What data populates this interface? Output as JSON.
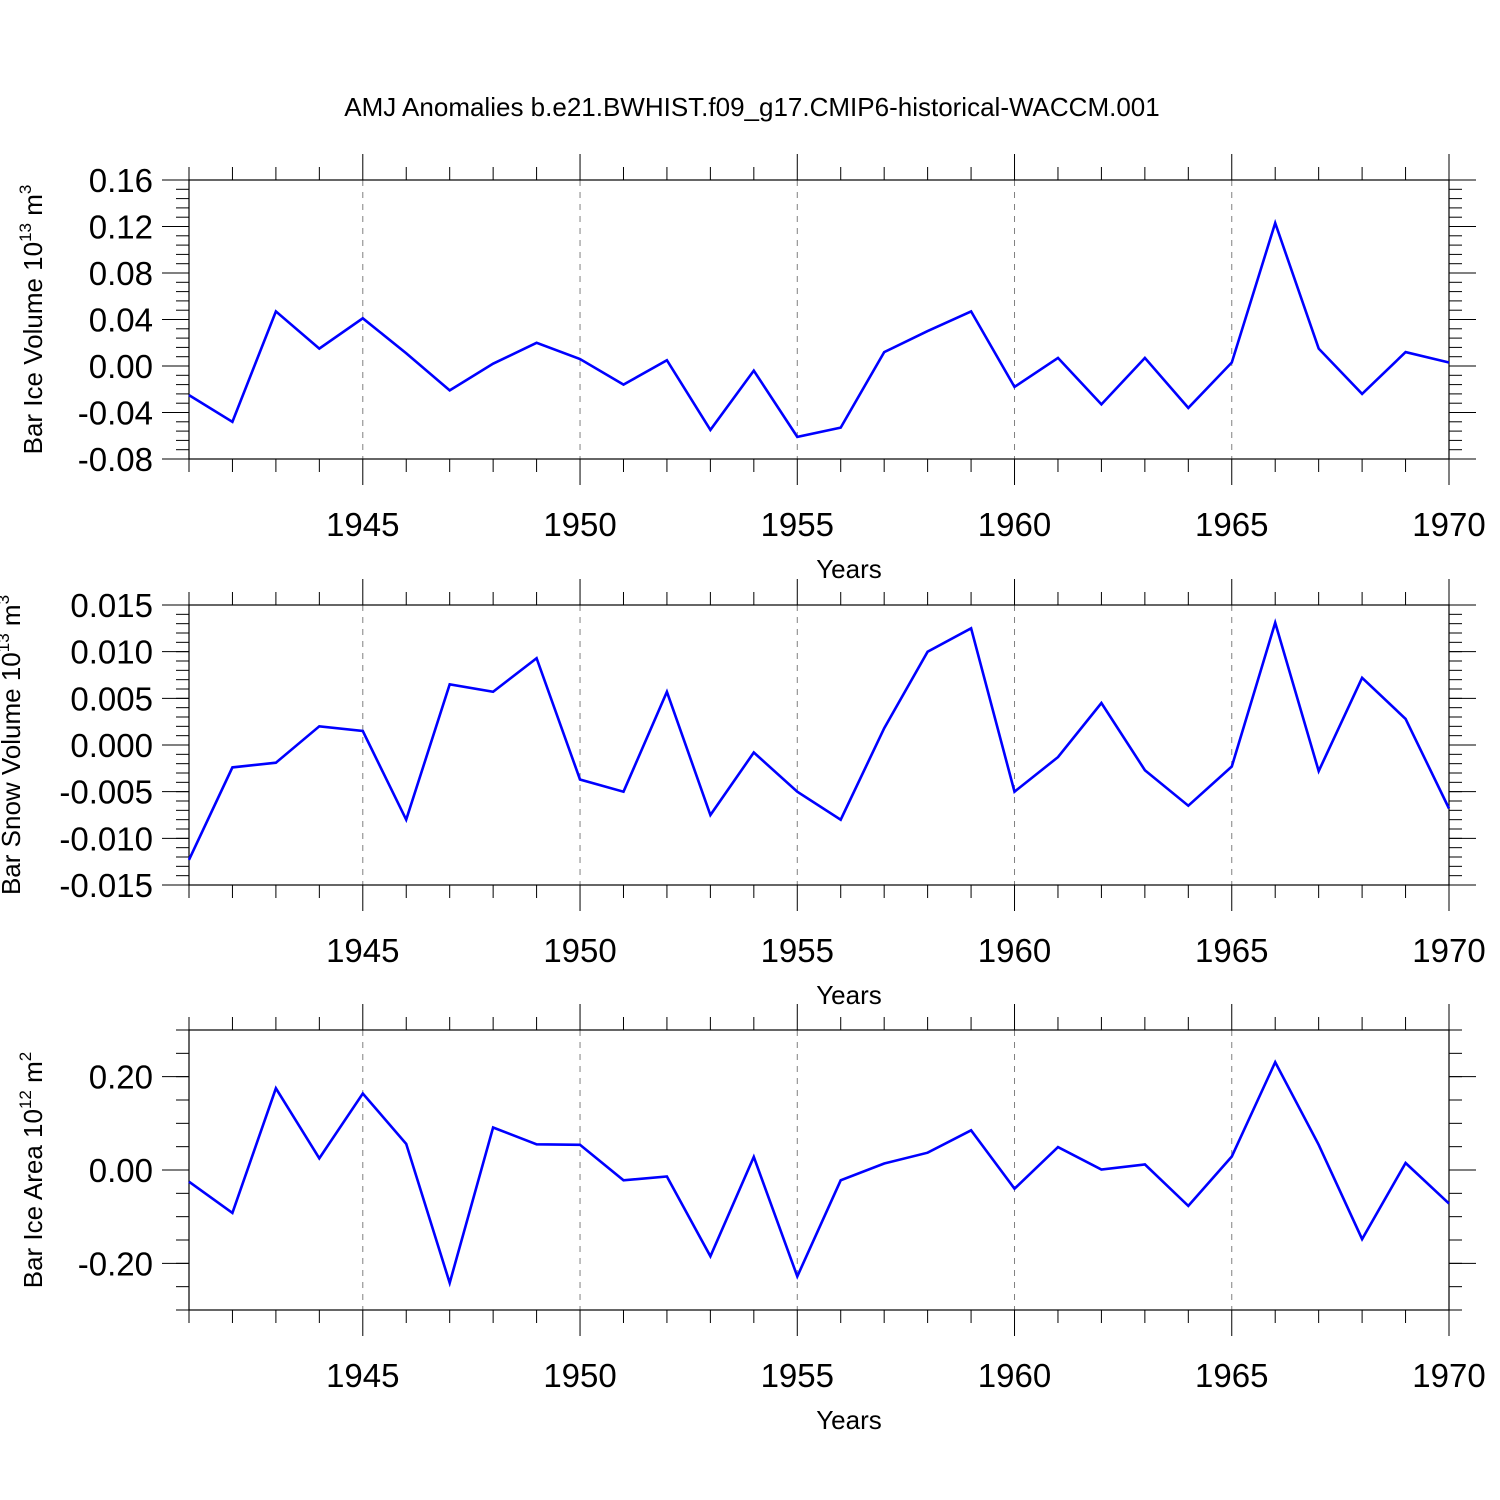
{
  "title": "AMJ Anomalies b.e21.BWHIST.f09_g17.CMIP6-historical-WACCM.001",
  "colors": {
    "line": "#0000ff",
    "axis": "#000000",
    "grid": "#808080"
  },
  "chart_data": [
    {
      "type": "line",
      "name": "ice-volume",
      "ylabel_parts": {
        "base": "Bar Ice Volume 10",
        "exp1": "13",
        "mid": " m",
        "exp2": "3"
      },
      "xlabel": "Years",
      "xlim": [
        1941,
        1970
      ],
      "ylim": [
        -0.08,
        0.16
      ],
      "yticks": [
        {
          "v": -0.08,
          "label": "-0.08"
        },
        {
          "v": -0.04,
          "label": "-0.04"
        },
        {
          "v": 0.0,
          "label": "0.00"
        },
        {
          "v": 0.04,
          "label": "0.04"
        },
        {
          "v": 0.08,
          "label": "0.08"
        },
        {
          "v": 0.12,
          "label": "0.12"
        },
        {
          "v": 0.16,
          "label": "0.16"
        }
      ],
      "yminor": 0.008,
      "xticks": [
        {
          "v": 1945,
          "label": "1945"
        },
        {
          "v": 1950,
          "label": "1950"
        },
        {
          "v": 1955,
          "label": "1955"
        },
        {
          "v": 1960,
          "label": "1960"
        },
        {
          "v": 1965,
          "label": "1965"
        },
        {
          "v": 1970,
          "label": "1970"
        }
      ],
      "x": [
        1941,
        1942,
        1943,
        1944,
        1945,
        1946,
        1947,
        1948,
        1949,
        1950,
        1951,
        1952,
        1953,
        1954,
        1955,
        1956,
        1957,
        1958,
        1959,
        1960,
        1961,
        1962,
        1963,
        1964,
        1965,
        1966,
        1967,
        1968,
        1969,
        1970
      ],
      "values": [
        -0.025,
        -0.048,
        0.047,
        0.015,
        0.041,
        0.011,
        -0.021,
        0.002,
        0.02,
        0.006,
        -0.016,
        0.005,
        -0.055,
        -0.004,
        -0.061,
        -0.053,
        0.012,
        0.03,
        0.047,
        -0.018,
        0.007,
        -0.033,
        0.007,
        -0.036,
        0.003,
        0.123,
        0.015,
        -0.024,
        0.012,
        0.003
      ]
    },
    {
      "type": "line",
      "name": "snow-volume",
      "ylabel_parts": {
        "base": "Bar Snow Volume 10",
        "exp1": "13",
        "mid": " m",
        "exp2": "3"
      },
      "xlabel": "Years",
      "xlim": [
        1941,
        1970
      ],
      "ylim": [
        -0.015,
        0.015
      ],
      "yticks": [
        {
          "v": -0.015,
          "label": "-0.015"
        },
        {
          "v": -0.01,
          "label": "-0.010"
        },
        {
          "v": -0.005,
          "label": "-0.005"
        },
        {
          "v": 0.0,
          "label": "0.000"
        },
        {
          "v": 0.005,
          "label": "0.005"
        },
        {
          "v": 0.01,
          "label": "0.010"
        },
        {
          "v": 0.015,
          "label": "0.015"
        }
      ],
      "yminor": 0.001,
      "xticks": [
        {
          "v": 1945,
          "label": "1945"
        },
        {
          "v": 1950,
          "label": "1950"
        },
        {
          "v": 1955,
          "label": "1955"
        },
        {
          "v": 1960,
          "label": "1960"
        },
        {
          "v": 1965,
          "label": "1965"
        },
        {
          "v": 1970,
          "label": "1970"
        }
      ],
      "x": [
        1941,
        1942,
        1943,
        1944,
        1945,
        1946,
        1947,
        1948,
        1949,
        1950,
        1951,
        1952,
        1953,
        1954,
        1955,
        1956,
        1957,
        1958,
        1959,
        1960,
        1961,
        1962,
        1963,
        1964,
        1965,
        1966,
        1967,
        1968,
        1969,
        1970
      ],
      "values": [
        -0.0123,
        -0.0024,
        -0.0019,
        0.002,
        0.0015,
        -0.008,
        0.0065,
        0.0057,
        0.0093,
        -0.0037,
        -0.005,
        0.0057,
        -0.0075,
        -0.0008,
        -0.005,
        -0.008,
        0.0018,
        0.01,
        0.0125,
        -0.005,
        -0.0013,
        0.0045,
        -0.0027,
        -0.0065,
        -0.0023,
        0.0131,
        -0.0028,
        0.0072,
        0.0028,
        -0.0068
      ]
    },
    {
      "type": "line",
      "name": "ice-area",
      "ylabel_parts": {
        "base": "Bar Ice Area 10",
        "exp1": "12",
        "mid": " m",
        "exp2": "2"
      },
      "xlabel": "Years",
      "xlim": [
        1941,
        1970
      ],
      "ylim": [
        -0.3,
        0.3
      ],
      "yticks": [
        {
          "v": -0.2,
          "label": "-0.20"
        },
        {
          "v": 0.0,
          "label": "0.00"
        },
        {
          "v": 0.2,
          "label": "0.20"
        }
      ],
      "yminor": 0.05,
      "xticks": [
        {
          "v": 1945,
          "label": "1945"
        },
        {
          "v": 1950,
          "label": "1950"
        },
        {
          "v": 1955,
          "label": "1955"
        },
        {
          "v": 1960,
          "label": "1960"
        },
        {
          "v": 1965,
          "label": "1965"
        },
        {
          "v": 1970,
          "label": "1970"
        }
      ],
      "x": [
        1941,
        1942,
        1943,
        1944,
        1945,
        1946,
        1947,
        1948,
        1949,
        1950,
        1951,
        1952,
        1953,
        1954,
        1955,
        1956,
        1957,
        1958,
        1959,
        1960,
        1961,
        1962,
        1963,
        1964,
        1965,
        1966,
        1967,
        1968,
        1969,
        1970
      ],
      "values": [
        -0.025,
        -0.092,
        0.175,
        0.025,
        0.164,
        0.056,
        -0.242,
        0.091,
        0.055,
        0.054,
        -0.022,
        -0.014,
        -0.185,
        0.028,
        -0.228,
        -0.022,
        0.014,
        0.037,
        0.085,
        -0.04,
        0.049,
        0.001,
        0.012,
        -0.077,
        0.029,
        0.231,
        0.054,
        -0.148,
        0.015,
        -0.072
      ]
    }
  ]
}
